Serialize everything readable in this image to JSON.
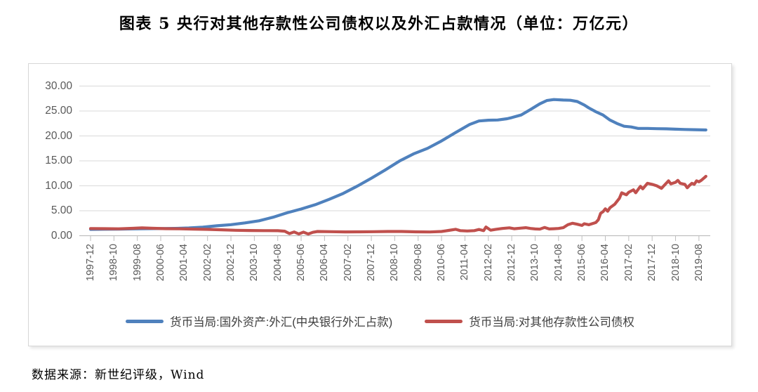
{
  "title": "图表 5  央行对其他存款性公司债权以及外汇占款情况（单位：万亿元）",
  "source_note": "数据来源：新世纪评级，Wind",
  "colors": {
    "series_fx_blue": "#4f81bd",
    "series_claims_red": "#c0504d",
    "grid": "#d9d9d9",
    "axis": "#bfbfbf",
    "tick_label": "#595959",
    "legend_text": "#3f3f3f",
    "frame_border": "#d7d7d7"
  },
  "chart_data": {
    "type": "line",
    "title": "央行对其他存款性公司债权以及外汇占款情况",
    "unit": "万亿元",
    "x_unit": "months since 1997-12 (monthly time series)",
    "x_tick_month_step": 10,
    "x_tick_labels": [
      "1997-12",
      "1998-10",
      "1999-08",
      "2000-06",
      "2001-04",
      "2002-02",
      "2002-12",
      "2003-10",
      "2004-08",
      "2005-06",
      "2006-04",
      "2007-02",
      "2007-12",
      "2008-10",
      "2009-08",
      "2010-06",
      "2011-04",
      "2012-02",
      "2012-12",
      "2013-10",
      "2014-08",
      "2015-06",
      "2016-04",
      "2017-02",
      "2017-12",
      "2018-10",
      "2019-08"
    ],
    "y_ticks": [
      0,
      5,
      10,
      15,
      20,
      25,
      30
    ],
    "y_tick_labels": [
      "0.00",
      "5.00",
      "10.00",
      "15.00",
      "20.00",
      "25.00",
      "30.00"
    ],
    "ylim": [
      0,
      30
    ],
    "grid": "horizontal",
    "legend_position": "bottom",
    "series": [
      {
        "name": "货币当局:国外资产:外汇(中央银行外汇占款)",
        "color": "#4f81bd",
        "points": [
          [
            0,
            1.27
          ],
          [
            6,
            1.29
          ],
          [
            12,
            1.31
          ],
          [
            18,
            1.36
          ],
          [
            24,
            1.41
          ],
          [
            30,
            1.44
          ],
          [
            36,
            1.46
          ],
          [
            42,
            1.55
          ],
          [
            48,
            1.7
          ],
          [
            54,
            1.99
          ],
          [
            60,
            2.21
          ],
          [
            66,
            2.56
          ],
          [
            72,
            2.98
          ],
          [
            78,
            3.7
          ],
          [
            84,
            4.59
          ],
          [
            90,
            5.35
          ],
          [
            96,
            6.21
          ],
          [
            102,
            7.3
          ],
          [
            108,
            8.48
          ],
          [
            114,
            9.95
          ],
          [
            120,
            11.52
          ],
          [
            126,
            13.2
          ],
          [
            132,
            14.96
          ],
          [
            138,
            16.4
          ],
          [
            144,
            17.51
          ],
          [
            150,
            19.0
          ],
          [
            156,
            20.68
          ],
          [
            162,
            22.3
          ],
          [
            166,
            23.0
          ],
          [
            170,
            23.15
          ],
          [
            174,
            23.2
          ],
          [
            178,
            23.45
          ],
          [
            180,
            23.67
          ],
          [
            184,
            24.2
          ],
          [
            188,
            25.3
          ],
          [
            192,
            26.43
          ],
          [
            195,
            27.1
          ],
          [
            198,
            27.3
          ],
          [
            202,
            27.2
          ],
          [
            205,
            27.15
          ],
          [
            208,
            26.9
          ],
          [
            211,
            26.2
          ],
          [
            213,
            25.6
          ],
          [
            216,
            24.85
          ],
          [
            219,
            24.2
          ],
          [
            222,
            23.19
          ],
          [
            225,
            22.5
          ],
          [
            228,
            21.94
          ],
          [
            231,
            21.8
          ],
          [
            234,
            21.51
          ],
          [
            238,
            21.5
          ],
          [
            242,
            21.45
          ],
          [
            246,
            21.42
          ],
          [
            250,
            21.35
          ],
          [
            254,
            21.3
          ],
          [
            258,
            21.25
          ],
          [
            263,
            21.2
          ]
        ]
      },
      {
        "name": "货币当局:对其他存款性公司债权",
        "color": "#c0504d",
        "points": [
          [
            0,
            1.44
          ],
          [
            6,
            1.41
          ],
          [
            12,
            1.38
          ],
          [
            18,
            1.48
          ],
          [
            22,
            1.57
          ],
          [
            26,
            1.49
          ],
          [
            32,
            1.41
          ],
          [
            38,
            1.38
          ],
          [
            44,
            1.33
          ],
          [
            50,
            1.27
          ],
          [
            56,
            1.18
          ],
          [
            62,
            1.08
          ],
          [
            68,
            1.04
          ],
          [
            74,
            1.02
          ],
          [
            80,
            1.0
          ],
          [
            83,
            0.9
          ],
          [
            85,
            0.42
          ],
          [
            87,
            0.75
          ],
          [
            89,
            0.35
          ],
          [
            91,
            0.72
          ],
          [
            93,
            0.34
          ],
          [
            95,
            0.68
          ],
          [
            97,
            0.85
          ],
          [
            103,
            0.8
          ],
          [
            109,
            0.76
          ],
          [
            115,
            0.78
          ],
          [
            121,
            0.8
          ],
          [
            127,
            0.84
          ],
          [
            133,
            0.84
          ],
          [
            139,
            0.78
          ],
          [
            145,
            0.74
          ],
          [
            150,
            0.85
          ],
          [
            153,
            1.05
          ],
          [
            156,
            1.28
          ],
          [
            158,
            1.02
          ],
          [
            161,
            0.95
          ],
          [
            164,
            1.02
          ],
          [
            166,
            1.25
          ],
          [
            168,
            1.02
          ],
          [
            169,
            1.74
          ],
          [
            171,
            1.1
          ],
          [
            173,
            1.25
          ],
          [
            176,
            1.45
          ],
          [
            179,
            1.58
          ],
          [
            181,
            1.4
          ],
          [
            184,
            1.52
          ],
          [
            186,
            1.6
          ],
          [
            188,
            1.45
          ],
          [
            190,
            1.35
          ],
          [
            192,
            1.31
          ],
          [
            194,
            1.65
          ],
          [
            196,
            1.35
          ],
          [
            198,
            1.4
          ],
          [
            200,
            1.45
          ],
          [
            202,
            1.6
          ],
          [
            204,
            2.2
          ],
          [
            206,
            2.5
          ],
          [
            208,
            2.3
          ],
          [
            210,
            2.06
          ],
          [
            211,
            2.4
          ],
          [
            213,
            2.2
          ],
          [
            215,
            2.5
          ],
          [
            216,
            2.66
          ],
          [
            217,
            3.2
          ],
          [
            218,
            4.5
          ],
          [
            219,
            4.8
          ],
          [
            220,
            5.4
          ],
          [
            221,
            4.9
          ],
          [
            222,
            5.6
          ],
          [
            224,
            6.3
          ],
          [
            226,
            7.5
          ],
          [
            227,
            8.6
          ],
          [
            228,
            8.4
          ],
          [
            229,
            8.2
          ],
          [
            230,
            8.7
          ],
          [
            232,
            9.2
          ],
          [
            233,
            8.6
          ],
          [
            235,
            9.9
          ],
          [
            236,
            9.4
          ],
          [
            238,
            10.5
          ],
          [
            240,
            10.3
          ],
          [
            242,
            10.0
          ],
          [
            244,
            9.5
          ],
          [
            245,
            10.0
          ],
          [
            247,
            11.0
          ],
          [
            248,
            10.4
          ],
          [
            250,
            10.7
          ],
          [
            251,
            11.1
          ],
          [
            252,
            10.5
          ],
          [
            254,
            10.3
          ],
          [
            255,
            9.6
          ],
          [
            256,
            10.1
          ],
          [
            257,
            10.5
          ],
          [
            258,
            10.3
          ],
          [
            259,
            11.0
          ],
          [
            260,
            10.8
          ],
          [
            261,
            11.1
          ],
          [
            263,
            11.9
          ]
        ]
      }
    ]
  }
}
